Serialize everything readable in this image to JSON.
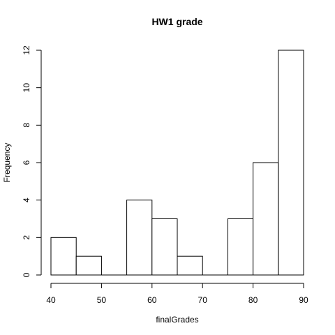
{
  "chart_data": {
    "type": "bar",
    "title": "HW1 grade",
    "xlabel": "finalGrades",
    "ylabel": "Frequency",
    "bins": [
      {
        "start": 40,
        "end": 45,
        "count": 2
      },
      {
        "start": 45,
        "end": 50,
        "count": 1
      },
      {
        "start": 50,
        "end": 55,
        "count": 0
      },
      {
        "start": 55,
        "end": 60,
        "count": 4
      },
      {
        "start": 60,
        "end": 65,
        "count": 3
      },
      {
        "start": 65,
        "end": 70,
        "count": 1
      },
      {
        "start": 70,
        "end": 75,
        "count": 0
      },
      {
        "start": 75,
        "end": 80,
        "count": 3
      },
      {
        "start": 80,
        "end": 85,
        "count": 6
      },
      {
        "start": 85,
        "end": 90,
        "count": 12
      }
    ],
    "xlim": [
      40,
      90
    ],
    "ylim": [
      0,
      12
    ],
    "xticks": [
      40,
      50,
      60,
      70,
      80,
      90
    ],
    "yticks": [
      0,
      2,
      4,
      6,
      8,
      10,
      12
    ],
    "grid": false,
    "legend": false,
    "colors": {
      "bar_fill": "#ffffff",
      "bar_stroke": "#000000"
    }
  }
}
